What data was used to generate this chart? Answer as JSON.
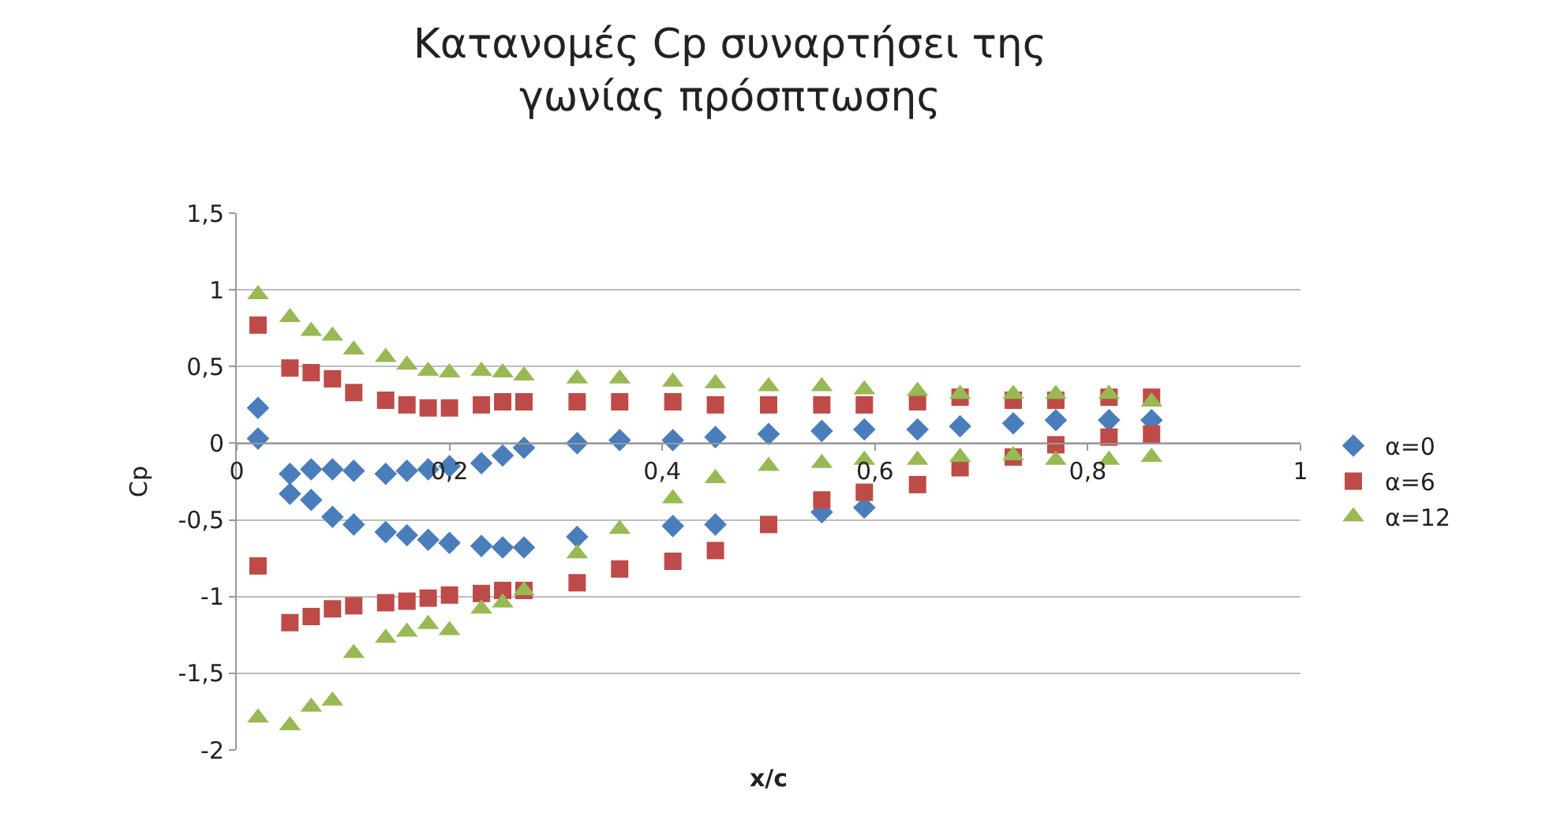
{
  "chart_data": {
    "type": "scatter",
    "title": "Κατανομές Cp συναρτήσει της\nγωνίας πρόσπτωσης",
    "xlabel": "x/c",
    "ylabel": "Cp",
    "xlim": [
      0,
      1
    ],
    "xticks": [
      0,
      {
        "value": 0.2,
        "label": "0,2"
      },
      {
        "value": 0.4,
        "label": "0,4"
      },
      {
        "value": 0.6,
        "label": "0,6"
      },
      {
        "value": 0.8,
        "label": "0,8"
      },
      1
    ],
    "ylim": [
      -2,
      1.5
    ],
    "yticks": [
      -2,
      {
        "value": -1.5,
        "label": "-1,5"
      },
      -1,
      {
        "value": -0.5,
        "label": "-0,5"
      },
      0,
      {
        "value": 0.5,
        "label": "0,5"
      },
      1,
      {
        "value": 1.5,
        "label": "1,5"
      }
    ],
    "grid": "y",
    "legend": "right",
    "x": [
      0.02,
      0.05,
      0.07,
      0.09,
      0.11,
      0.14,
      0.16,
      0.18,
      0.2,
      0.23,
      0.25,
      0.27,
      0.32,
      0.36,
      0.41,
      0.45,
      0.5,
      0.55,
      0.59,
      0.64,
      0.68,
      0.73,
      0.77,
      0.82,
      0.86,
      0.02,
      0.05,
      0.07,
      0.09,
      0.11,
      0.14,
      0.16,
      0.18,
      0.2,
      0.23,
      0.25,
      0.27,
      0.32,
      0.36,
      0.41,
      0.45,
      0.5,
      0.55,
      0.59,
      0.64,
      0.68,
      0.73,
      0.77,
      0.82,
      0.86
    ],
    "series": [
      {
        "name": "α=0",
        "color": "#4a7ebb",
        "marker": "diamond",
        "values": [
          0.23,
          -0.2,
          -0.17,
          -0.17,
          -0.18,
          -0.2,
          -0.18,
          -0.17,
          -0.15,
          -0.13,
          -0.08,
          -0.03,
          0.0,
          0.02,
          0.02,
          0.04,
          0.06,
          0.08,
          0.09,
          0.09,
          0.11,
          0.13,
          0.15,
          0.15,
          0.15,
          0.03,
          -0.33,
          -0.37,
          -0.48,
          -0.53,
          -0.58,
          -0.6,
          -0.63,
          -0.65,
          -0.67,
          -0.68,
          -0.68,
          -0.61,
          null,
          -0.54,
          -0.53,
          null,
          -0.45,
          -0.42,
          null,
          null,
          null,
          null,
          null,
          null
        ]
      },
      {
        "name": "α=6",
        "color": "#be4b48",
        "marker": "square",
        "values": [
          0.77,
          0.49,
          0.46,
          0.42,
          0.33,
          0.28,
          0.25,
          0.23,
          0.23,
          0.25,
          0.27,
          0.27,
          0.27,
          0.27,
          0.27,
          0.25,
          0.25,
          0.25,
          0.25,
          0.27,
          0.3,
          0.28,
          0.28,
          0.3,
          0.3,
          -0.8,
          -1.17,
          -1.13,
          -1.08,
          -1.06,
          -1.04,
          -1.03,
          -1.01,
          -0.99,
          -0.98,
          -0.96,
          -0.96,
          -0.91,
          -0.82,
          -0.77,
          -0.7,
          -0.53,
          -0.37,
          -0.32,
          -0.27,
          -0.16,
          -0.09,
          -0.01,
          0.04,
          0.06
        ]
      },
      {
        "name": "α=12",
        "color": "#98b954",
        "marker": "triangle",
        "values": [
          0.97,
          0.82,
          0.73,
          0.7,
          0.61,
          0.56,
          0.51,
          0.47,
          0.46,
          0.47,
          0.46,
          0.44,
          0.42,
          0.42,
          0.4,
          0.39,
          0.37,
          0.37,
          0.35,
          0.34,
          0.32,
          0.32,
          0.32,
          0.32,
          0.27,
          -1.79,
          -1.84,
          -1.72,
          -1.68,
          -1.37,
          -1.27,
          -1.23,
          -1.18,
          -1.22,
          -1.08,
          -1.04,
          -0.96,
          -0.72,
          -0.56,
          -0.36,
          -0.23,
          -0.15,
          -0.13,
          -0.11,
          -0.11,
          -0.09,
          -0.08,
          -0.11,
          -0.11,
          -0.09
        ]
      }
    ]
  }
}
